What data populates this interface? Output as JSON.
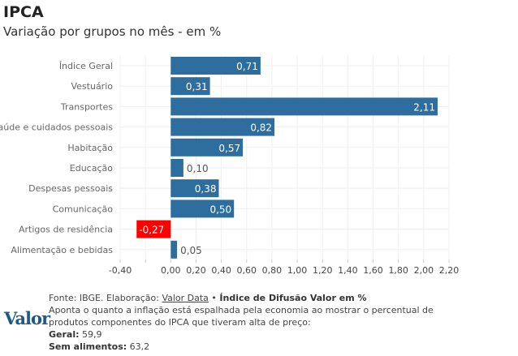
{
  "title": "IPCA",
  "subtitle": "Variação por grupos no mês - em %",
  "chart_data": {
    "type": "bar",
    "orientation": "horizontal",
    "categories": [
      "Índice Geral",
      "Vestuário",
      "Transportes",
      "Saúde e cuidados pessoais",
      "Habitação",
      "Educação",
      "Despesas pessoais",
      "Comunicação",
      "Artigos de residência",
      "Alimentação e bebidas"
    ],
    "values": [
      0.71,
      0.31,
      2.11,
      0.82,
      0.57,
      0.1,
      0.38,
      0.5,
      -0.27,
      0.05
    ],
    "labels": [
      "0,71",
      "0,31",
      "2,11",
      "0,82",
      "0,57",
      "0,10",
      "0,38",
      "0,50",
      "-0,27",
      "0,05"
    ],
    "xlim": [
      -0.4,
      2.2
    ],
    "xticks": [
      -0.4,
      -0.2,
      0,
      0.2,
      0.4,
      0.6,
      0.8,
      1,
      1.2,
      1.4,
      1.6,
      1.8,
      2,
      2.2
    ],
    "xtick_labels": [
      "-0,40",
      "",
      "0,00",
      "0,20",
      "0,40",
      "0,60",
      "0,80",
      "1,00",
      "1,20",
      "1,40",
      "1,60",
      "1,80",
      "2,00",
      "2,20"
    ],
    "colors": {
      "positive": "#2e6e9e",
      "negative": "#ff0000"
    },
    "grid": true
  },
  "footer": {
    "source_prefix": "Fonte: IBGE. Elaboração: ",
    "source_link": "Valor Data",
    "separator": " • ",
    "index_title": "Índice de Difusão Valor em %",
    "description": "Aponta o quanto a inflação está espalhada pela economia ao mostrar o percentual de produtos componentes do IPCA que tiveram alta de preço:",
    "geral_label": "Geral:",
    "geral_value": " 59,9",
    "sem_label": "Sem alimentos:",
    "sem_value": " 63,2",
    "logo": "Valor"
  }
}
